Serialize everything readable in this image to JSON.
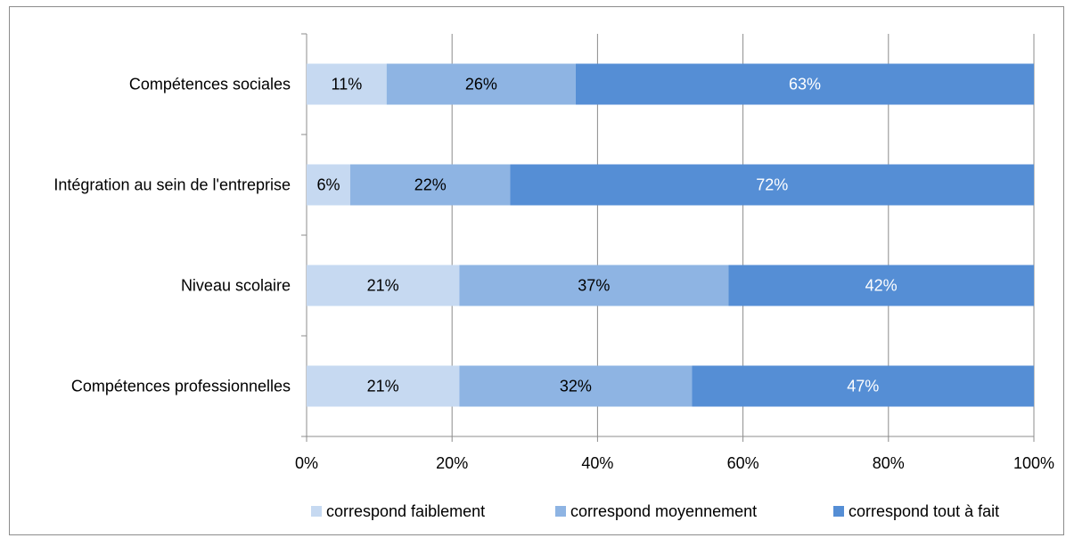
{
  "chart_data": {
    "type": "bar",
    "orientation": "horizontal",
    "stacked": "percent",
    "categories": [
      "Compétences sociales",
      "Intégration au sein de l'entreprise",
      "Niveau scolaire",
      "Compétences professionnelles"
    ],
    "series": [
      {
        "name": "correspond faiblement",
        "color": "#c6d9f1",
        "values": [
          11,
          6,
          21,
          21
        ],
        "labels": [
          "11%",
          "6%",
          "21%",
          "21%"
        ],
        "label_color": "#000000"
      },
      {
        "name": "correspond moyennement",
        "color": "#8eb4e3",
        "values": [
          26,
          22,
          37,
          32
        ],
        "labels": [
          "26%",
          "22%",
          "37%",
          "32%"
        ],
        "label_color": "#000000"
      },
      {
        "name": "correspond tout à fait",
        "color": "#558ed5",
        "values": [
          63,
          72,
          42,
          47
        ],
        "labels": [
          "63%",
          "72%",
          "42%",
          "47%"
        ],
        "label_color": "#ffffff"
      }
    ],
    "xlim": [
      0,
      100
    ],
    "x_ticks": [
      "0%",
      "20%",
      "40%",
      "60%",
      "80%",
      "100%"
    ],
    "grid": "vertical",
    "legend": "bottom"
  }
}
